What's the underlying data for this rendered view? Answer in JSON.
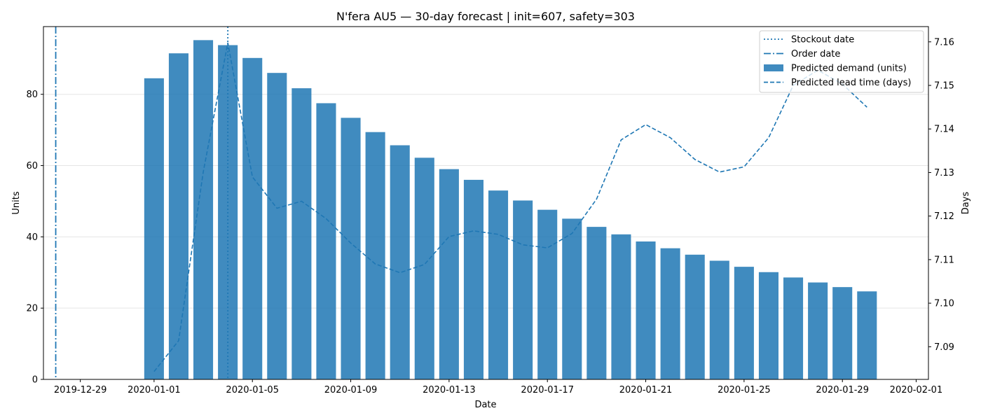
{
  "chart_data": {
    "type": "bar",
    "title": "N'fera AU5 — 30-day forecast | init=607, safety=303",
    "xlabel": "Date",
    "ylabel": "Units",
    "y2label": "Days",
    "ylim": [
      0,
      99
    ],
    "y2lim": [
      7.0825,
      7.1635
    ],
    "xlim": [
      "2019-12-27T12:00",
      "2020-02-01T12:00"
    ],
    "grid": "horizontal",
    "legend_position": "top-right",
    "colors": {
      "bar": "#1f77b4",
      "line": "#1f77b4",
      "grid": "#e5e5e5"
    },
    "yticks": [
      0,
      20,
      40,
      60,
      80
    ],
    "y2ticks": [
      7.09,
      7.1,
      7.11,
      7.12,
      7.13,
      7.14,
      7.15,
      7.16
    ],
    "y2tick_labels": [
      "7.09",
      "7.10",
      "7.11",
      "7.12",
      "7.13",
      "7.14",
      "7.15",
      "7.16"
    ],
    "xticks": [
      "2019-12-29",
      "2020-01-01",
      "2020-01-05",
      "2020-01-09",
      "2020-01-13",
      "2020-01-17",
      "2020-01-21",
      "2020-01-25",
      "2020-01-29",
      "2020-02-01"
    ],
    "dates": [
      "2020-01-01",
      "2020-01-02",
      "2020-01-03",
      "2020-01-04",
      "2020-01-05",
      "2020-01-06",
      "2020-01-07",
      "2020-01-08",
      "2020-01-09",
      "2020-01-10",
      "2020-01-11",
      "2020-01-12",
      "2020-01-13",
      "2020-01-14",
      "2020-01-15",
      "2020-01-16",
      "2020-01-17",
      "2020-01-18",
      "2020-01-19",
      "2020-01-20",
      "2020-01-21",
      "2020-01-22",
      "2020-01-23",
      "2020-01-24",
      "2020-01-25",
      "2020-01-26",
      "2020-01-27",
      "2020-01-28",
      "2020-01-29",
      "2020-01-30"
    ],
    "series": [
      {
        "name": "Predicted demand (units)",
        "kind": "bar",
        "axis": "left",
        "values": [
          84.5,
          91.5,
          95.2,
          93.8,
          90.2,
          86.0,
          81.7,
          77.5,
          73.4,
          69.4,
          65.7,
          62.2,
          59.0,
          56.0,
          53.0,
          50.2,
          47.6,
          45.1,
          42.8,
          40.7,
          38.7,
          36.8,
          35.0,
          33.3,
          31.6,
          30.1,
          28.6,
          27.2,
          25.9,
          24.7
        ]
      },
      {
        "name": "Predicted lead time (days)",
        "kind": "line",
        "style": "dashed",
        "axis": "right",
        "values": [
          7.0843,
          7.0914,
          7.1301,
          7.1598,
          7.129,
          7.1218,
          7.1234,
          7.1194,
          7.1138,
          7.109,
          7.107,
          7.1089,
          7.1153,
          7.1166,
          7.1158,
          7.1134,
          7.1127,
          7.116,
          7.1239,
          7.1375,
          7.141,
          7.138,
          7.133,
          7.1301,
          7.1313,
          7.138,
          7.15,
          7.1535,
          7.1503,
          7.145
        ]
      }
    ],
    "vlines": [
      {
        "name": "Stockout date",
        "date": "2020-01-04",
        "style": "dotted"
      },
      {
        "name": "Order date",
        "date": "2019-12-28",
        "style": "dashdot"
      }
    ],
    "legend": [
      "Stockout date",
      "Order date",
      "Predicted demand (units)",
      "Predicted lead time (days)"
    ]
  }
}
